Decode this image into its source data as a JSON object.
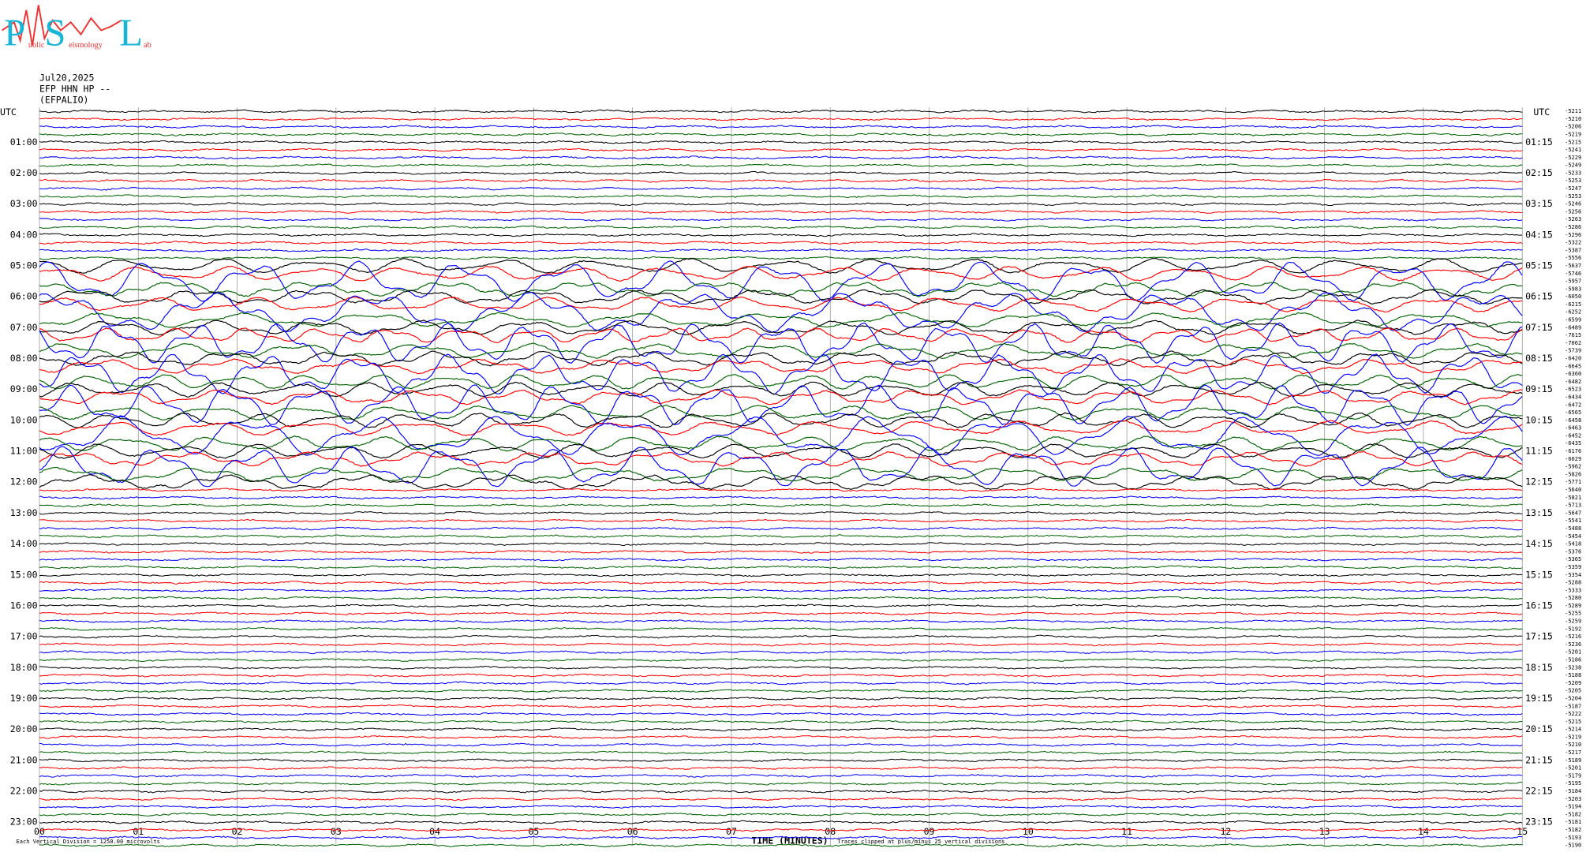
{
  "logo": [
    "P",
    "ublic",
    "S",
    "eismology",
    "L",
    "ab"
  ],
  "header": [
    "Jul20,2025",
    "EFP HHN HP --",
    "(EFPALIO)"
  ],
  "chart_data": {
    "type": "helicorder",
    "x_label": "TIME (MINUTES)",
    "xlim": [
      0,
      15
    ],
    "xticks": [
      {
        "value": 0,
        "label": "00"
      },
      {
        "value": 1,
        "label": "01"
      },
      {
        "value": 2,
        "label": "02"
      },
      {
        "value": 3,
        "label": "03"
      },
      {
        "value": 4,
        "label": "04"
      },
      {
        "value": 5,
        "label": "05"
      },
      {
        "value": 6,
        "label": "06"
      },
      {
        "value": 7,
        "label": "07"
      },
      {
        "value": 8,
        "label": "08"
      },
      {
        "value": 9,
        "label": "09"
      },
      10,
      11,
      12,
      13,
      14,
      15
    ],
    "left_axis_label": "UTC",
    "right_axis_label": "UTC",
    "left_times": [
      "01:00",
      "02:00",
      "03:00",
      "04:00",
      "05:00",
      "06:00",
      "07:00",
      "08:00",
      "09:00",
      "10:00",
      "11:00",
      "12:00",
      "13:00",
      "14:00",
      "15:00",
      "16:00",
      "17:00",
      "18:00",
      "19:00",
      "20:00",
      "21:00",
      "22:00",
      "23:00"
    ],
    "right_times": [
      "01:15",
      "02:15",
      "03:15",
      "04:15",
      "05:15",
      "06:15",
      "07:15",
      "08:15",
      "09:15",
      "10:15",
      "11:15",
      "12:15",
      "13:15",
      "14:15",
      "15:15",
      "16:15",
      "17:15",
      "18:15",
      "19:15",
      "20:15",
      "21:15",
      "22:15",
      "23:15"
    ],
    "trace_colors": [
      "#000000",
      "#ff0000",
      "#0000ff",
      "#006400"
    ],
    "trace_offsets": [
      -5211,
      -5210,
      -5206,
      -5219,
      -5215,
      -5241,
      -5229,
      -5249,
      -5233,
      -5253,
      -5247,
      -5253,
      -5246,
      -5256,
      -5263,
      -5286,
      -5296,
      -5322,
      -5387,
      -5556,
      -5637,
      -5746,
      -5957,
      -5983,
      -6050,
      -6215,
      -6252,
      -6599,
      -6489,
      -7615,
      -7062,
      -5739,
      -6420,
      -6645,
      -6360,
      -6482,
      -6523,
      -6434,
      -6472,
      -6565,
      -6458,
      -6463,
      -6452,
      -6435,
      -6176,
      -6029,
      -5962,
      -5826,
      -5771,
      -5640,
      -5821,
      -5713,
      -5647,
      -5541,
      -5488,
      -5454,
      -5418,
      -5376,
      -5365,
      -5359,
      -5354,
      -5288,
      -5333,
      -5280,
      -5289,
      -5255,
      -5259,
      -5192,
      -5216,
      -5236,
      -5201,
      -5186,
      -5238,
      -5188,
      -5209,
      -5205,
      -5204,
      -5187,
      -5222,
      -5215,
      -5214,
      -5219,
      -5210,
      -5217,
      -5189,
      -5201,
      -5179,
      -5195,
      -5184,
      -5203,
      -5194,
      -5182,
      -5181,
      -5182,
      -5193,
      -5190
    ],
    "footnote_left": "Each Vertical Division = 1250.00 microvolts",
    "footnote_right": "Traces clipped at plus/minus 25 vertical divisions"
  }
}
